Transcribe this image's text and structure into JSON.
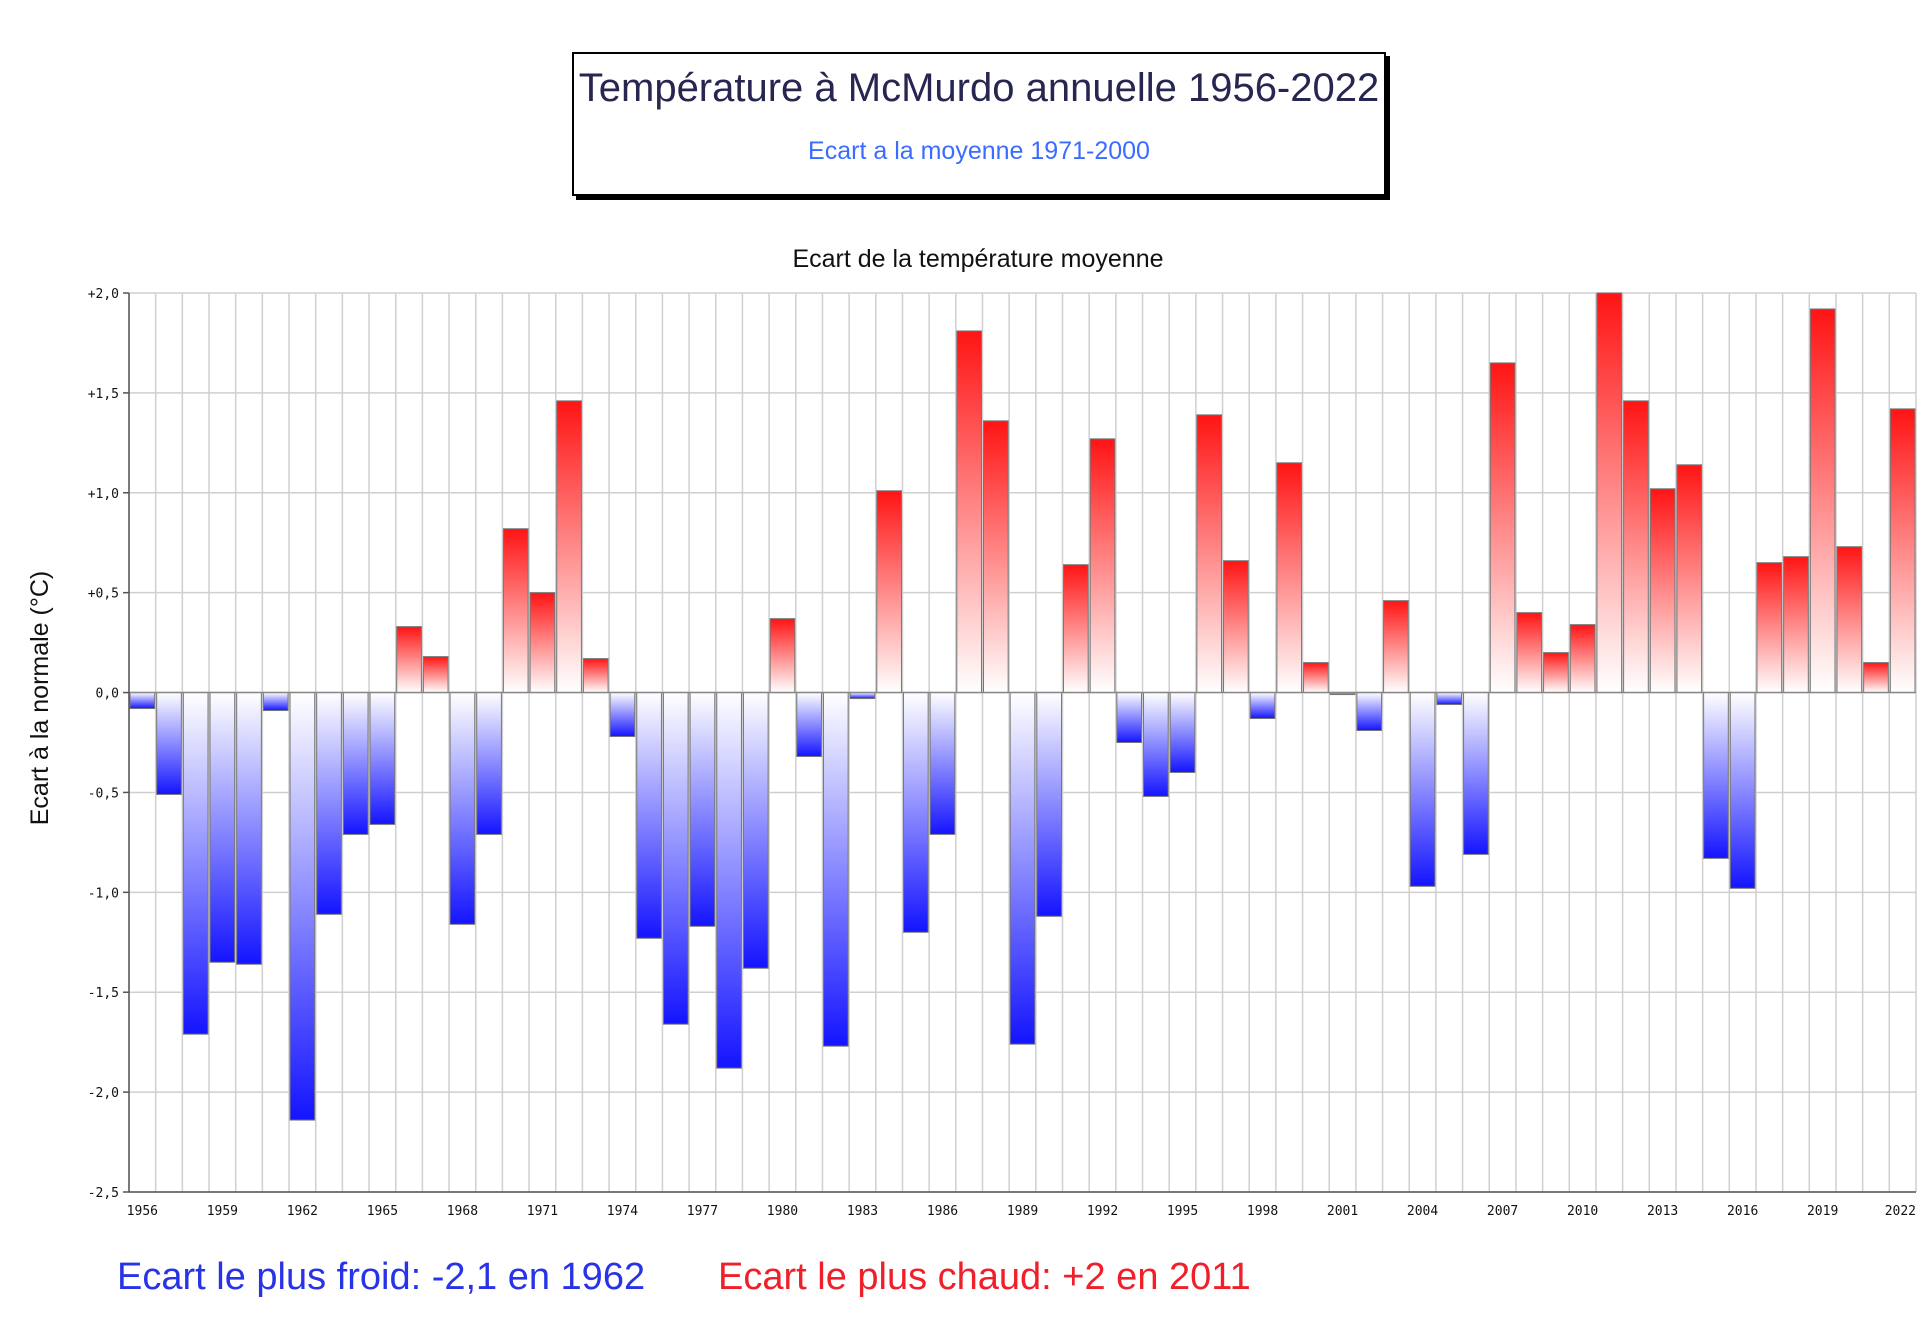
{
  "header": {
    "title": "Température à McMurdo annuelle 1956-2022",
    "subtitle": "Ecart a la moyenne 1971-2000"
  },
  "footer": {
    "coldest": "Ecart le plus froid: -2,1 en 1962",
    "warmest": "Ecart le plus chaud: +2 en 2011"
  },
  "colors": {
    "negative": "#1414ff",
    "positive": "#ff1414",
    "grid": "#cfcfcf",
    "title_text": "#262650",
    "subtitle_text": "#3a6cff",
    "footer_cold": "#2833e8",
    "footer_hot": "#f0202a"
  },
  "chart_data": {
    "type": "bar",
    "title": "Ecart de la température moyenne",
    "ylabel": "Ecart à la normale (°C)",
    "xlabel": "",
    "ylim": [
      -2.5,
      2.0
    ],
    "yticks": [
      2.0,
      1.5,
      1.0,
      0.5,
      0.0,
      -0.5,
      -1.0,
      -1.5,
      -2.0,
      -2.5
    ],
    "ytick_labels": [
      "+2,0",
      "+1,5",
      "+1,0",
      "+0,5",
      "0,0",
      "-0,5",
      "-1,0",
      "-1,5",
      "-2,0",
      "-2,5"
    ],
    "xtick_labels": [
      "1956",
      "1959",
      "1962",
      "1965",
      "1968",
      "1971",
      "1974",
      "1977",
      "1980",
      "1983",
      "1986",
      "1989",
      "1992",
      "1995",
      "1998",
      "2001",
      "2004",
      "2007",
      "2010",
      "2013",
      "2016",
      "2019",
      "2022"
    ],
    "grid": true,
    "categories": [
      1956,
      1957,
      1958,
      1959,
      1960,
      1961,
      1962,
      1963,
      1964,
      1965,
      1966,
      1967,
      1968,
      1969,
      1970,
      1971,
      1972,
      1973,
      1974,
      1975,
      1976,
      1977,
      1978,
      1979,
      1980,
      1981,
      1982,
      1983,
      1984,
      1985,
      1986,
      1987,
      1988,
      1989,
      1990,
      1991,
      1992,
      1993,
      1994,
      1995,
      1996,
      1997,
      1998,
      1999,
      2000,
      2001,
      2002,
      2003,
      2004,
      2005,
      2006,
      2007,
      2008,
      2009,
      2010,
      2011,
      2012,
      2013,
      2014,
      2015,
      2016,
      2017,
      2018,
      2019,
      2020,
      2021,
      2022
    ],
    "values": [
      -0.08,
      -0.51,
      -1.71,
      -1.35,
      -1.36,
      -0.09,
      -2.14,
      -1.11,
      -0.71,
      -0.66,
      0.33,
      0.18,
      -1.16,
      -0.71,
      0.82,
      0.5,
      1.46,
      0.17,
      -0.22,
      -1.23,
      -1.66,
      -1.17,
      -1.88,
      -1.38,
      0.37,
      -0.32,
      -1.77,
      -0.03,
      1.01,
      -1.2,
      -0.71,
      1.81,
      1.36,
      -1.76,
      -1.12,
      0.64,
      1.27,
      -0.25,
      -0.52,
      -0.4,
      1.39,
      0.66,
      -0.13,
      1.15,
      0.15,
      -0.01,
      -0.19,
      0.46,
      -0.97,
      -0.06,
      -0.81,
      1.65,
      0.4,
      0.2,
      0.34,
      2.0,
      1.46,
      1.02,
      1.14,
      -0.83,
      -0.98,
      0.65,
      0.68,
      1.92,
      0.73,
      0.15,
      1.42
    ]
  }
}
